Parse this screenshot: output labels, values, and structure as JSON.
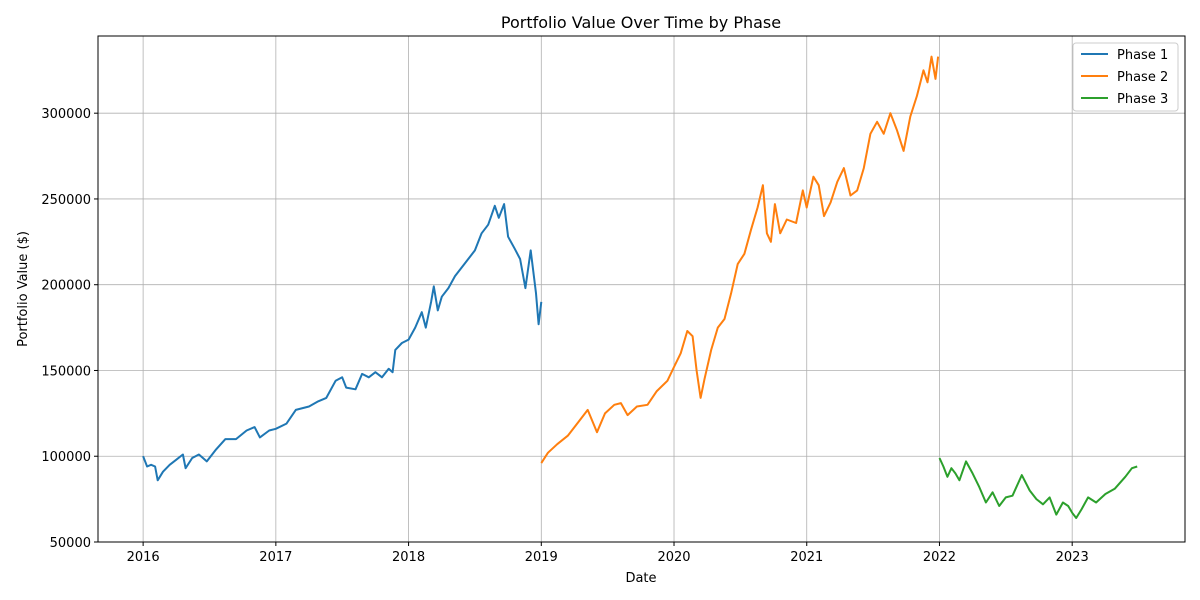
{
  "chart_data": {
    "type": "line",
    "title": "Portfolio Value Over Time by Phase",
    "xlabel": "Date",
    "ylabel": "Portfolio Value ($)",
    "xlim": [
      2015.66,
      2023.85
    ],
    "ylim": [
      50000,
      345000
    ],
    "x_ticks": [
      "2016",
      "2017",
      "2018",
      "2019",
      "2020",
      "2021",
      "2022",
      "2023"
    ],
    "y_ticks": [
      "50000",
      "100000",
      "150000",
      "200000",
      "250000",
      "300000"
    ],
    "grid": true,
    "legend_position": "top-right",
    "series": [
      {
        "name": "Phase 1",
        "color": "#1f77b4",
        "points": [
          [
            2016.0,
            100000
          ],
          [
            2016.03,
            94000
          ],
          [
            2016.06,
            95000
          ],
          [
            2016.09,
            94000
          ],
          [
            2016.11,
            86000
          ],
          [
            2016.15,
            91000
          ],
          [
            2016.2,
            95000
          ],
          [
            2016.25,
            98000
          ],
          [
            2016.3,
            101000
          ],
          [
            2016.32,
            93000
          ],
          [
            2016.37,
            99000
          ],
          [
            2016.42,
            101000
          ],
          [
            2016.48,
            97000
          ],
          [
            2016.55,
            104000
          ],
          [
            2016.62,
            110000
          ],
          [
            2016.7,
            110000
          ],
          [
            2016.78,
            115000
          ],
          [
            2016.84,
            117000
          ],
          [
            2016.88,
            111000
          ],
          [
            2016.95,
            115000
          ],
          [
            2017.0,
            116000
          ],
          [
            2017.08,
            119000
          ],
          [
            2017.15,
            127000
          ],
          [
            2017.25,
            129000
          ],
          [
            2017.32,
            132000
          ],
          [
            2017.38,
            134000
          ],
          [
            2017.45,
            144000
          ],
          [
            2017.5,
            146000
          ],
          [
            2017.53,
            140000
          ],
          [
            2017.6,
            139000
          ],
          [
            2017.65,
            148000
          ],
          [
            2017.7,
            146000
          ],
          [
            2017.75,
            149000
          ],
          [
            2017.8,
            146000
          ],
          [
            2017.85,
            151000
          ],
          [
            2017.88,
            149000
          ],
          [
            2017.9,
            162000
          ],
          [
            2017.95,
            166000
          ],
          [
            2018.0,
            168000
          ],
          [
            2018.05,
            175000
          ],
          [
            2018.1,
            184000
          ],
          [
            2018.13,
            175000
          ],
          [
            2018.17,
            190000
          ],
          [
            2018.19,
            199000
          ],
          [
            2018.22,
            185000
          ],
          [
            2018.25,
            193000
          ],
          [
            2018.3,
            198000
          ],
          [
            2018.35,
            205000
          ],
          [
            2018.42,
            212000
          ],
          [
            2018.5,
            220000
          ],
          [
            2018.55,
            230000
          ],
          [
            2018.6,
            235000
          ],
          [
            2018.65,
            246000
          ],
          [
            2018.68,
            239000
          ],
          [
            2018.72,
            247000
          ],
          [
            2018.75,
            228000
          ],
          [
            2018.8,
            221000
          ],
          [
            2018.84,
            215000
          ],
          [
            2018.88,
            198000
          ],
          [
            2018.92,
            220000
          ],
          [
            2018.96,
            195000
          ],
          [
            2018.98,
            177000
          ],
          [
            2019.0,
            190000
          ]
        ]
      },
      {
        "name": "Phase 2",
        "color": "#ff7f0e",
        "points": [
          [
            2019.0,
            96000
          ],
          [
            2019.05,
            102000
          ],
          [
            2019.12,
            107000
          ],
          [
            2019.2,
            112000
          ],
          [
            2019.28,
            120000
          ],
          [
            2019.35,
            127000
          ],
          [
            2019.42,
            114000
          ],
          [
            2019.48,
            125000
          ],
          [
            2019.55,
            130000
          ],
          [
            2019.6,
            131000
          ],
          [
            2019.65,
            124000
          ],
          [
            2019.72,
            129000
          ],
          [
            2019.8,
            130000
          ],
          [
            2019.87,
            138000
          ],
          [
            2019.95,
            144000
          ],
          [
            2020.0,
            152000
          ],
          [
            2020.05,
            160000
          ],
          [
            2020.1,
            173000
          ],
          [
            2020.14,
            170000
          ],
          [
            2020.17,
            150000
          ],
          [
            2020.2,
            134000
          ],
          [
            2020.23,
            145000
          ],
          [
            2020.28,
            162000
          ],
          [
            2020.33,
            175000
          ],
          [
            2020.38,
            180000
          ],
          [
            2020.43,
            195000
          ],
          [
            2020.48,
            212000
          ],
          [
            2020.53,
            218000
          ],
          [
            2020.58,
            232000
          ],
          [
            2020.63,
            245000
          ],
          [
            2020.67,
            258000
          ],
          [
            2020.7,
            230000
          ],
          [
            2020.73,
            225000
          ],
          [
            2020.76,
            247000
          ],
          [
            2020.8,
            230000
          ],
          [
            2020.85,
            238000
          ],
          [
            2020.92,
            236000
          ],
          [
            2020.97,
            255000
          ],
          [
            2021.0,
            245000
          ],
          [
            2021.05,
            263000
          ],
          [
            2021.09,
            258000
          ],
          [
            2021.13,
            240000
          ],
          [
            2021.18,
            248000
          ],
          [
            2021.23,
            260000
          ],
          [
            2021.28,
            268000
          ],
          [
            2021.33,
            252000
          ],
          [
            2021.38,
            255000
          ],
          [
            2021.43,
            268000
          ],
          [
            2021.48,
            288000
          ],
          [
            2021.53,
            295000
          ],
          [
            2021.58,
            288000
          ],
          [
            2021.63,
            300000
          ],
          [
            2021.68,
            290000
          ],
          [
            2021.73,
            278000
          ],
          [
            2021.78,
            298000
          ],
          [
            2021.83,
            310000
          ],
          [
            2021.88,
            325000
          ],
          [
            2021.91,
            318000
          ],
          [
            2021.94,
            333000
          ],
          [
            2021.97,
            320000
          ],
          [
            2021.99,
            333000
          ]
        ]
      },
      {
        "name": "Phase 3",
        "color": "#2ca02c",
        "points": [
          [
            2022.0,
            99000
          ],
          [
            2022.03,
            94000
          ],
          [
            2022.06,
            88000
          ],
          [
            2022.09,
            93000
          ],
          [
            2022.12,
            90000
          ],
          [
            2022.15,
            86000
          ],
          [
            2022.2,
            97000
          ],
          [
            2022.25,
            90000
          ],
          [
            2022.3,
            82000
          ],
          [
            2022.35,
            73000
          ],
          [
            2022.4,
            79000
          ],
          [
            2022.45,
            71000
          ],
          [
            2022.5,
            76000
          ],
          [
            2022.55,
            77000
          ],
          [
            2022.62,
            89000
          ],
          [
            2022.68,
            80000
          ],
          [
            2022.73,
            75000
          ],
          [
            2022.78,
            72000
          ],
          [
            2022.83,
            76000
          ],
          [
            2022.88,
            66000
          ],
          [
            2022.93,
            73000
          ],
          [
            2022.97,
            71000
          ],
          [
            2023.0,
            67000
          ],
          [
            2023.03,
            64000
          ],
          [
            2023.07,
            69000
          ],
          [
            2023.12,
            76000
          ],
          [
            2023.18,
            73000
          ],
          [
            2023.25,
            78000
          ],
          [
            2023.32,
            81000
          ],
          [
            2023.4,
            88000
          ],
          [
            2023.45,
            93000
          ],
          [
            2023.49,
            94000
          ]
        ]
      }
    ]
  }
}
